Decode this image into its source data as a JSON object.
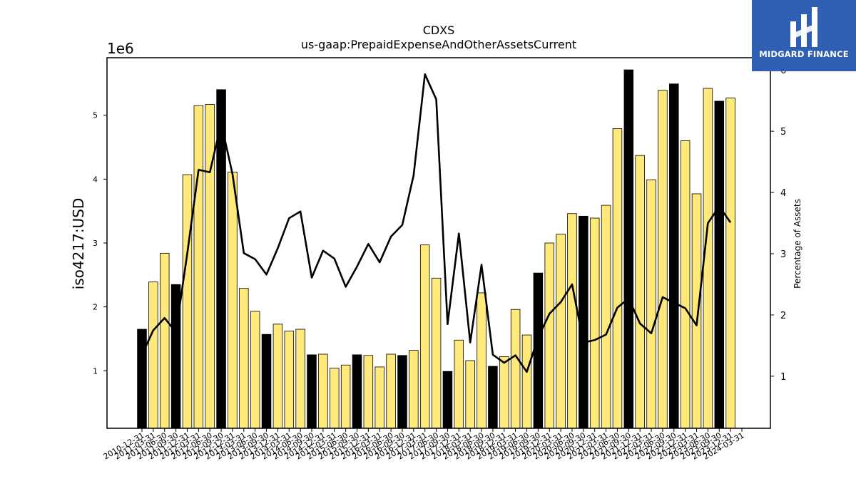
{
  "chart_data": {
    "type": "bar",
    "title": "CDXS",
    "subtitle": "us-gaap:PrepaidExpenseAndOtherAssetsCurrent",
    "ylabel": "iso4217:USD",
    "y_multiplier_label": "1e6",
    "y2label": "Percentage of Assets",
    "ylim": [
      0.1,
      5.9
    ],
    "y2lim": [
      0.15,
      6.2
    ],
    "yticks": [
      1,
      2,
      3,
      4,
      5
    ],
    "y2ticks": [
      1,
      2,
      3,
      4,
      5,
      6
    ],
    "grid": false,
    "colors": {
      "annual_bar": "#000000",
      "quarter_bar": "#ffe97a",
      "line": "#000000"
    },
    "categories": [
      "2010-12-31",
      "2011-03-31",
      "2011-06-30",
      "2011-09-30",
      "2011-12-31",
      "2012-03-31",
      "2012-06-30",
      "2012-09-30",
      "2012-12-31",
      "2013-03-31",
      "2013-06-30",
      "2013-09-30",
      "2013-12-31",
      "2014-03-31",
      "2014-06-30",
      "2014-09-30",
      "2014-12-31",
      "2015-03-31",
      "2015-06-30",
      "2015-09-30",
      "2015-12-31",
      "2016-03-31",
      "2016-06-30",
      "2016-09-30",
      "2016-12-31",
      "2017-03-31",
      "2017-06-30",
      "2017-09-30",
      "2017-12-31",
      "2018-03-31",
      "2018-06-30",
      "2018-09-30",
      "2018-12-31",
      "2019-03-31",
      "2019-06-30",
      "2019-09-30",
      "2019-12-31",
      "2020-03-31",
      "2020-06-30",
      "2020-09-30",
      "2020-12-31",
      "2021-03-31",
      "2021-06-30",
      "2021-09-30",
      "2021-12-31",
      "2022-03-31",
      "2022-06-30",
      "2022-09-30",
      "2022-12-31",
      "2023-03-31",
      "2023-06-30",
      "2023-09-30",
      "2023-12-31",
      "2024-03-31"
    ],
    "series": [
      {
        "values": [
          1.65,
          2.39,
          2.84,
          2.35,
          4.07,
          5.15,
          5.17,
          5.4,
          4.11,
          2.29,
          1.93,
          1.57,
          1.73,
          1.62,
          1.65,
          1.25,
          1.26,
          1.04,
          1.09,
          1.25,
          1.24,
          1.06,
          1.26,
          1.24,
          1.32,
          2.97,
          2.45,
          0.99,
          1.48,
          1.16,
          2.22,
          1.07,
          1.22,
          1.96,
          1.56,
          2.53,
          3.0,
          3.14,
          3.46,
          3.42,
          3.39,
          3.59,
          4.79,
          5.71,
          4.37,
          3.99,
          5.39,
          5.49,
          4.6,
          3.77,
          5.42,
          5.22,
          5.27,
          null
        ],
        "annual": [
          true,
          false,
          false,
          true,
          false,
          false,
          false,
          true,
          false,
          false,
          false,
          true,
          false,
          false,
          false,
          true,
          false,
          false,
          false,
          true,
          false,
          false,
          false,
          true,
          false,
          false,
          false,
          true,
          false,
          false,
          false,
          true,
          false,
          false,
          false,
          true,
          false,
          false,
          false,
          true,
          false,
          false,
          false,
          true,
          false,
          false,
          false,
          true,
          false,
          false,
          false,
          true,
          false,
          null
        ]
      },
      {
        "values": [
          1.35,
          1.75,
          1.95,
          1.72,
          3.0,
          4.37,
          4.33,
          5.13,
          4.3,
          3.01,
          2.91,
          2.66,
          3.09,
          3.58,
          3.69,
          2.61,
          3.05,
          2.92,
          2.46,
          2.79,
          3.16,
          2.86,
          3.28,
          3.47,
          4.28,
          5.93,
          5.52,
          1.85,
          3.33,
          1.55,
          2.82,
          1.35,
          1.22,
          1.34,
          1.07,
          1.63,
          2.02,
          2.21,
          2.5,
          1.55,
          1.59,
          1.68,
          2.12,
          2.27,
          1.86,
          1.7,
          2.29,
          2.2,
          2.11,
          1.83,
          3.5,
          3.77,
          3.51,
          null
        ]
      }
    ]
  },
  "logo": {
    "name": "MIDGARD FINANCE"
  }
}
